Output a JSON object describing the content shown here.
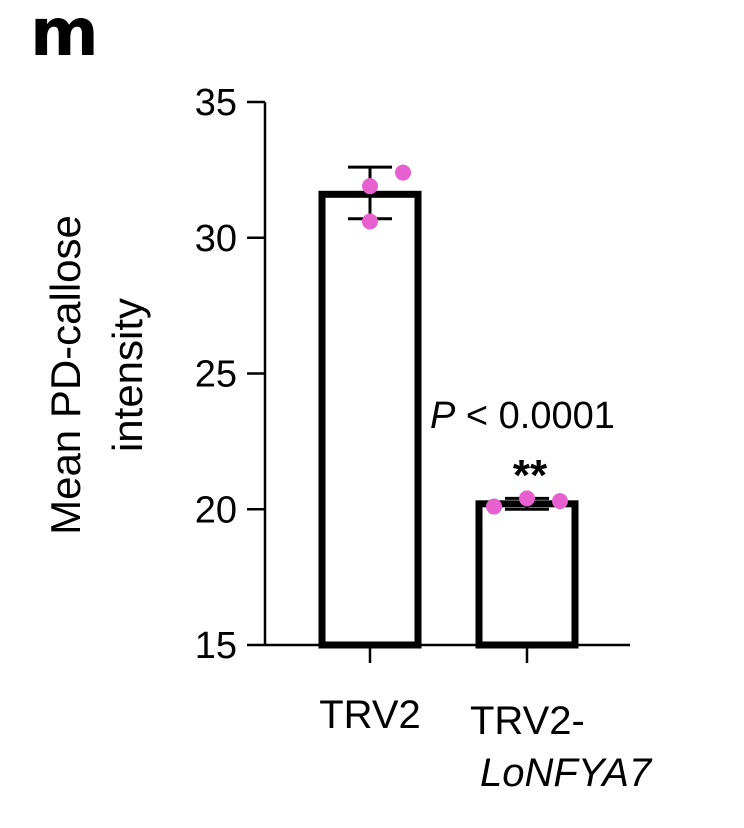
{
  "panel_label": "m",
  "chart_data": {
    "type": "bar",
    "categories": [
      {
        "line1": "TRV2",
        "line2": ""
      },
      {
        "line1": "TRV2-",
        "line2": "LoNFYA7"
      }
    ],
    "means": [
      31.6,
      20.2
    ],
    "error": [
      [
        30.7,
        32.6
      ],
      [
        20.0,
        20.4
      ]
    ],
    "points": [
      [
        32.4,
        31.9,
        30.6
      ],
      [
        20.1,
        20.4,
        20.3
      ]
    ],
    "ylabel_line1": "Mean PD-callose",
    "ylabel_line2": "intensity",
    "ylim": [
      15,
      35
    ],
    "yticks": [
      15,
      20,
      25,
      30,
      35
    ],
    "annotation": {
      "p_symbol": "P",
      "p_text": " < 0.0001",
      "significance": "**"
    },
    "colors": {
      "bar_fill": "#ffffff",
      "bar_edge": "#000000",
      "points": "#e85fd0"
    },
    "grid": false,
    "legend": "none"
  }
}
